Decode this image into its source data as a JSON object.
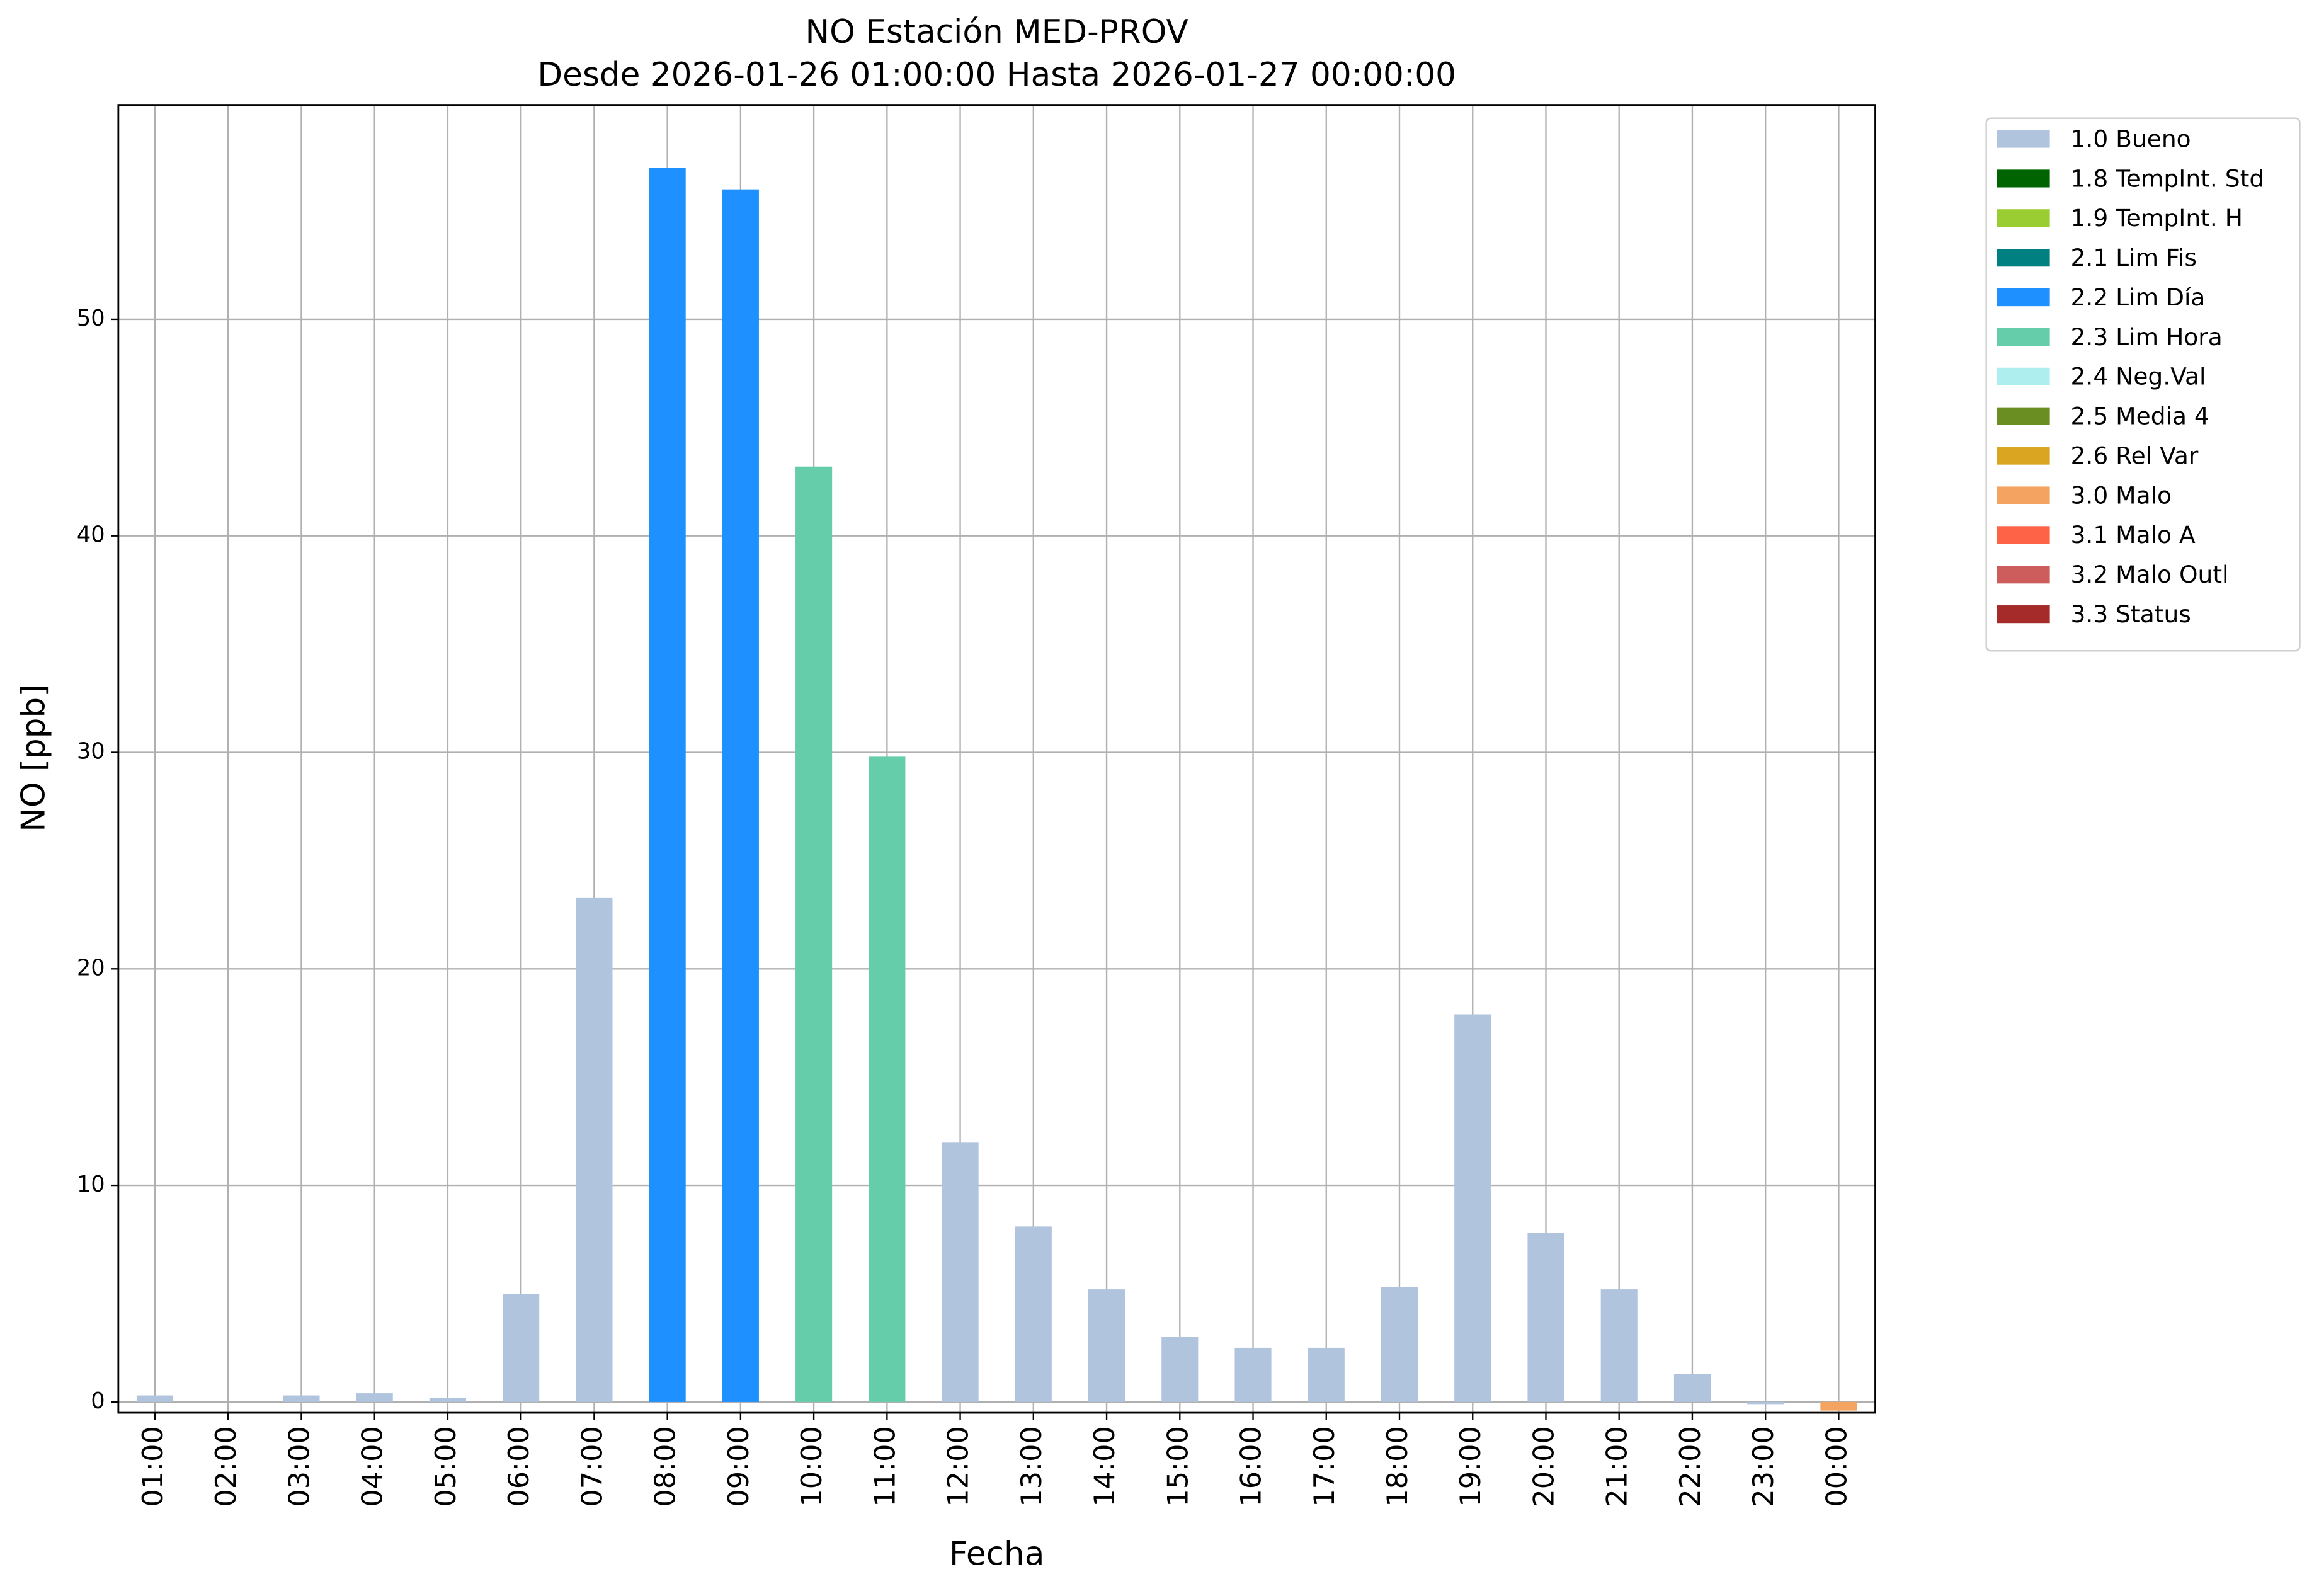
{
  "chart_data": {
    "type": "bar",
    "stacked": true,
    "title": "NO Estación MED-PROV",
    "subtitle": "Desde 2026-01-26 01:00:00 Hasta 2026-01-27 00:00:00",
    "x_label": "Fecha",
    "y_label": "NO [ppb]",
    "categories": [
      "01:00",
      "02:00",
      "03:00",
      "04:00",
      "05:00",
      "06:00",
      "07:00",
      "08:00",
      "09:00",
      "10:00",
      "11:00",
      "12:00",
      "13:00",
      "14:00",
      "15:00",
      "16:00",
      "17:00",
      "18:00",
      "19:00",
      "20:00",
      "21:00",
      "22:00",
      "23:00",
      "00:00"
    ],
    "series": [
      {
        "name": "1.0 Bueno",
        "color": "#b0c4de",
        "values": [
          0.3,
          0,
          0.3,
          0.4,
          0.2,
          5.0,
          23.3,
          null,
          null,
          null,
          null,
          12.0,
          8.1,
          5.2,
          3.0,
          2.5,
          2.5,
          5.3,
          17.9,
          7.8,
          5.2,
          1.3,
          -0.1,
          null
        ]
      },
      {
        "name": "1.8 TempInt. Std",
        "color": "#006400",
        "values": [
          null,
          null,
          null,
          null,
          null,
          null,
          null,
          null,
          null,
          null,
          null,
          null,
          null,
          null,
          null,
          null,
          null,
          null,
          null,
          null,
          null,
          null,
          null,
          null
        ]
      },
      {
        "name": "1.9 TempInt. H",
        "color": "#9acd32",
        "values": [
          null,
          null,
          null,
          null,
          null,
          null,
          null,
          null,
          null,
          null,
          null,
          null,
          null,
          null,
          null,
          null,
          null,
          null,
          null,
          null,
          null,
          null,
          null,
          null
        ]
      },
      {
        "name": "2.1 Lim Fis",
        "color": "#008080",
        "values": [
          null,
          null,
          null,
          null,
          null,
          null,
          null,
          null,
          null,
          null,
          null,
          null,
          null,
          null,
          null,
          null,
          null,
          null,
          null,
          null,
          null,
          null,
          null,
          null
        ]
      },
      {
        "name": "2.2 Lim Día",
        "color": "#1e90ff",
        "values": [
          null,
          null,
          null,
          null,
          null,
          null,
          null,
          57.0,
          56.0,
          null,
          null,
          null,
          null,
          null,
          null,
          null,
          null,
          null,
          null,
          null,
          null,
          null,
          null,
          null
        ]
      },
      {
        "name": "2.3 Lim Hora",
        "color": "#66cdaa",
        "values": [
          null,
          null,
          null,
          null,
          null,
          null,
          null,
          null,
          null,
          43.2,
          29.8,
          null,
          null,
          null,
          null,
          null,
          null,
          null,
          null,
          null,
          null,
          null,
          null,
          null
        ]
      },
      {
        "name": "2.4 Neg.Val",
        "color": "#afeeee",
        "values": [
          null,
          null,
          null,
          null,
          null,
          null,
          null,
          null,
          null,
          null,
          null,
          null,
          null,
          null,
          null,
          null,
          null,
          null,
          null,
          null,
          null,
          null,
          null,
          null
        ]
      },
      {
        "name": "2.5 Media 4",
        "color": "#6b8e23",
        "values": [
          null,
          null,
          null,
          null,
          null,
          null,
          null,
          null,
          null,
          null,
          null,
          null,
          null,
          null,
          null,
          null,
          null,
          null,
          null,
          null,
          null,
          null,
          null,
          null
        ]
      },
      {
        "name": "2.6 Rel Var",
        "color": "#daa520",
        "values": [
          null,
          null,
          null,
          null,
          null,
          null,
          null,
          null,
          null,
          null,
          null,
          null,
          null,
          null,
          null,
          null,
          null,
          null,
          null,
          null,
          null,
          null,
          null,
          null
        ]
      },
      {
        "name": "3.0 Malo",
        "color": "#f4a460",
        "values": [
          null,
          null,
          null,
          null,
          null,
          null,
          null,
          null,
          null,
          null,
          null,
          null,
          null,
          null,
          null,
          null,
          null,
          null,
          null,
          null,
          null,
          null,
          null,
          -0.4
        ]
      },
      {
        "name": "3.1 Malo A",
        "color": "#ff6347",
        "values": [
          null,
          null,
          null,
          null,
          null,
          null,
          null,
          null,
          null,
          null,
          null,
          null,
          null,
          null,
          null,
          null,
          null,
          null,
          null,
          null,
          null,
          null,
          null,
          null
        ]
      },
      {
        "name": "3.2 Malo Outl",
        "color": "#cd5c5c",
        "values": [
          null,
          null,
          null,
          null,
          null,
          null,
          null,
          null,
          null,
          null,
          null,
          null,
          null,
          null,
          null,
          null,
          null,
          null,
          null,
          null,
          null,
          null,
          null,
          null
        ]
      },
      {
        "name": "3.3 Status",
        "color": "#a52a2a",
        "values": [
          null,
          null,
          null,
          null,
          null,
          null,
          null,
          null,
          null,
          null,
          null,
          null,
          null,
          null,
          null,
          null,
          null,
          null,
          null,
          null,
          null,
          null,
          null,
          null
        ]
      }
    ],
    "ylim": [
      -0.5,
      59.9
    ],
    "yticks": [
      0,
      10,
      20,
      30,
      40,
      50
    ],
    "grid": true,
    "legend": "outside upper right"
  }
}
